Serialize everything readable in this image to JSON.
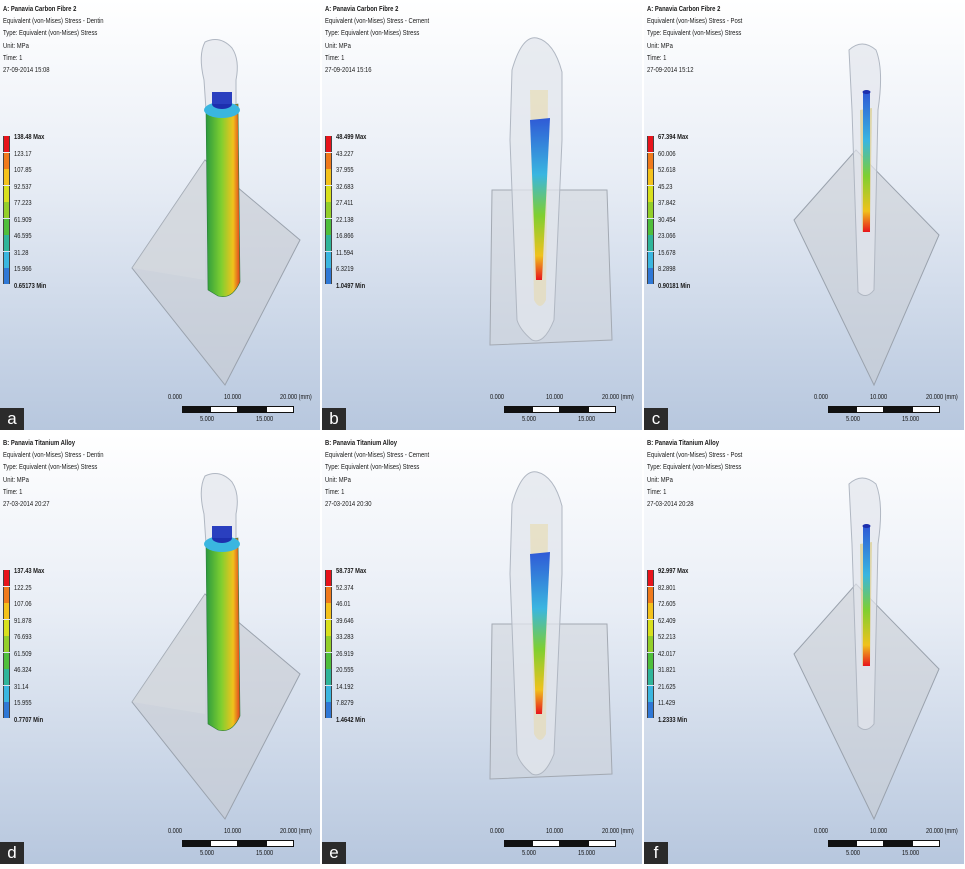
{
  "panels": [
    {
      "letter": "a",
      "title": "A: Panavia Carbon Fibre 2",
      "line1": "Equivalent (von-Mises) Stress - Dentin",
      "line2": "Type: Equivalent (von-Mises) Stress",
      "line3": "Unit: MPa",
      "line4": "Time: 1",
      "line5": "27-09-2014 15:08",
      "legend": [
        "138.48 Max",
        "123.17",
        "107.85",
        "92.537",
        "77.223",
        "61.909",
        "46.595",
        "31.28",
        "15.966",
        "0.65173 Min"
      ],
      "focus": "dentin"
    },
    {
      "letter": "b",
      "title": "A: Panavia Carbon Fibre 2",
      "line1": "Equivalent (von-Mises) Stress - Cement",
      "line2": "Type: Equivalent (von-Mises) Stress",
      "line3": "Unit: MPa",
      "line4": "Time: 1",
      "line5": "27-09-2014 15:16",
      "legend": [
        "48.499 Max",
        "43.227",
        "37.955",
        "32.683",
        "27.411",
        "22.138",
        "16.866",
        "11.594",
        "6.3219",
        "1.0497 Min"
      ],
      "focus": "cement"
    },
    {
      "letter": "c",
      "title": "A: Panavia Carbon Fibre 2",
      "line1": "Equivalent (von-Mises) Stress - Post",
      "line2": "Type: Equivalent (von-Mises) Stress",
      "line3": "Unit: MPa",
      "line4": "Time: 1",
      "line5": "27-09-2014 15:12",
      "legend": [
        "67.394 Max",
        "60.006",
        "52.618",
        "45.23",
        "37.842",
        "30.454",
        "23.066",
        "15.678",
        "8.2898",
        "0.90181 Min"
      ],
      "focus": "post"
    },
    {
      "letter": "d",
      "title": "B: Panavia Titanium Alloy",
      "line1": "Equivalent (von-Mises) Stress - Dentin",
      "line2": "Type: Equivalent (von-Mises) Stress",
      "line3": "Unit: MPa",
      "line4": "Time: 1",
      "line5": "27-03-2014 20:27",
      "legend": [
        "137.43 Max",
        "122.25",
        "107.06",
        "91.878",
        "76.693",
        "61.509",
        "46.324",
        "31.14",
        "15.955",
        "0.7707 Min"
      ],
      "focus": "dentin"
    },
    {
      "letter": "e",
      "title": "B: Panavia Titanium Alloy",
      "line1": "Equivalent (von-Mises) Stress - Cement",
      "line2": "Type: Equivalent (von-Mises) Stress",
      "line3": "Unit: MPa",
      "line4": "Time: 1",
      "line5": "27-03-2014 20:30",
      "legend": [
        "58.737 Max",
        "52.374",
        "46.01",
        "39.646",
        "33.283",
        "26.919",
        "20.555",
        "14.192",
        "7.8279",
        "1.4642 Min"
      ],
      "focus": "cement"
    },
    {
      "letter": "f",
      "title": "B: Panavia Titanium Alloy",
      "line1": "Equivalent (von-Mises) Stress - Post",
      "line2": "Type: Equivalent (von-Mises) Stress",
      "line3": "Unit: MPa",
      "line4": "Time: 1",
      "line5": "27-03-2014 20:28",
      "legend": [
        "92.997 Max",
        "82.801",
        "72.605",
        "62.409",
        "52.213",
        "42.017",
        "31.821",
        "21.625",
        "11.429",
        "1.2333 Min"
      ],
      "focus": "post"
    }
  ],
  "scale_bar": {
    "top": [
      "0.000",
      "10.000",
      "20.000 (mm)"
    ],
    "bottom": [
      "5.000",
      "15.000"
    ]
  },
  "legend_colors": [
    "#e8141b",
    "#f07a1c",
    "#f4c21c",
    "#d8e01e",
    "#93cf2a",
    "#4fbf3c",
    "#2fb59a",
    "#3ab6e0",
    "#2f78d6",
    "#1d2fae"
  ]
}
